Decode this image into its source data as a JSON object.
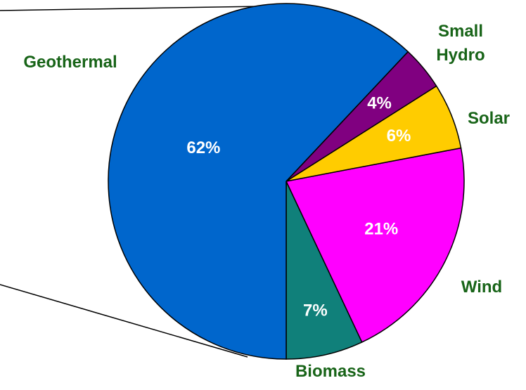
{
  "chart_data": {
    "type": "pie",
    "categories": [
      "Biomass",
      "Wind",
      "Solar",
      "Small Hydro",
      "Geothermal"
    ],
    "values": [
      7,
      21,
      6,
      4,
      62
    ],
    "value_labels": [
      "7%",
      "21%",
      "6%",
      "4%",
      "62%"
    ],
    "colors": [
      "#10807a",
      "#ff00ff",
      "#ffcc00",
      "#800080",
      "#0066cc"
    ]
  }
}
